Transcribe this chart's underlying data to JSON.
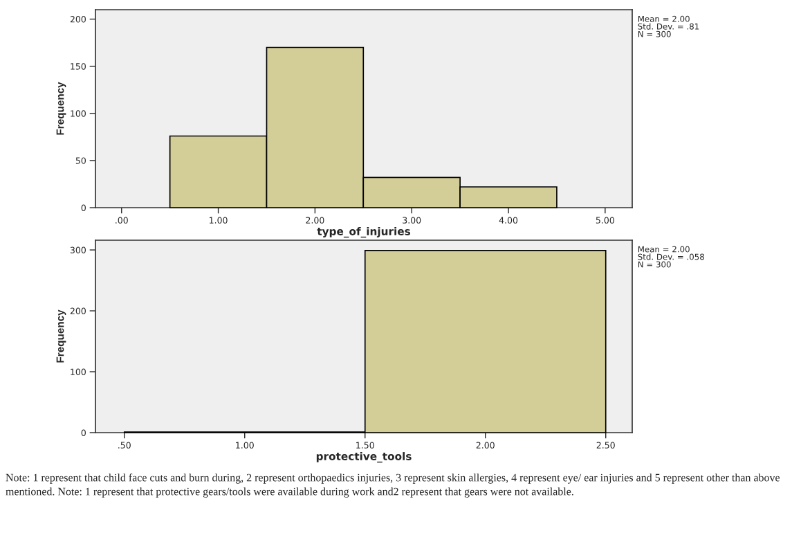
{
  "chart_data": [
    {
      "type": "histogram",
      "xlabel": "type_of_injuries",
      "ylabel": "Frequency",
      "bins": [
        0.5,
        1.5,
        2.5,
        3.5,
        4.5
      ],
      "values": [
        76,
        170,
        32,
        22
      ],
      "color": "#d3cd97",
      "xlim": [
        -0.27,
        5.28
      ],
      "xticks": [
        {
          "value": 0,
          "label": ".00"
        },
        {
          "value": 1,
          "label": "1.00"
        },
        {
          "value": 2,
          "label": "2.00"
        },
        {
          "value": 3,
          "label": "3.00"
        },
        {
          "value": 4,
          "label": "4.00"
        },
        {
          "value": 5,
          "label": "5.00"
        }
      ],
      "ylim": [
        0,
        210
      ],
      "yticks": [
        0,
        50,
        100,
        150,
        200
      ],
      "grid": false,
      "legend": false,
      "annotations": [
        "Mean = 2.00\nStd. Dev. = .81\nN = 300"
      ]
    },
    {
      "type": "histogram",
      "xlabel": "protective_tools",
      "ylabel": "Frequency",
      "bins": [
        0.5,
        1.5,
        2.5
      ],
      "values": [
        1,
        299
      ],
      "color": "#d3cd97",
      "xlim": [
        0.38,
        2.61
      ],
      "xticks": [
        {
          "value": 0.5,
          "label": ".50"
        },
        {
          "value": 1,
          "label": "1.00"
        },
        {
          "value": 1.5,
          "label": "1.50"
        },
        {
          "value": 2,
          "label": "2.00"
        },
        {
          "value": 2.5,
          "label": "2.50"
        }
      ],
      "ylim": [
        0,
        316
      ],
      "yticks": [
        0,
        100,
        200,
        300
      ],
      "grid": false,
      "legend": false,
      "annotations": [
        "Mean = 2.00\nStd. Dev. = .058\nN = 300",
        "Note: 1 represent that child face cuts and burn during, 2 represent orthopaedics injuries, 3 represent skin allergies, 4 represent eye/ ear injuries and 5 represent other than above mentioned. Note: 1 represent that protective gears/tools were available during work and2 represent that gears were not available."
      ]
    }
  ]
}
